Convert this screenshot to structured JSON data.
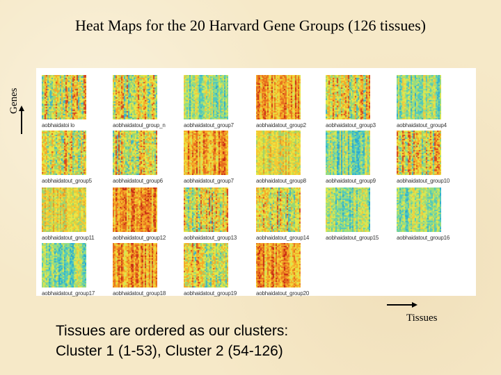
{
  "title": "Heat Maps for the 20 Harvard Gene Groups (126 tissues)",
  "y_axis_label": "Genes",
  "x_axis_label": "Tissues",
  "note_line1": "Tissues are ordered as our clusters:",
  "note_line2": "Cluster 1 (1-53), Cluster 2 (54-126)",
  "heatmaps": [
    {
      "caption": "aobhaidatoi lo",
      "tone": "mixed"
    },
    {
      "caption": "aobhaidatoul_group_n",
      "tone": "mixed"
    },
    {
      "caption": "aobhaidatout_group7",
      "tone": "cool"
    },
    {
      "caption": "aobhaidatout_group2",
      "tone": "warm"
    },
    {
      "caption": "aobhaidatout_group3",
      "tone": "mixed"
    },
    {
      "caption": "aobhaidatout_group4",
      "tone": "cool"
    },
    {
      "caption": "aobhaidatout_group5",
      "tone": "mixed"
    },
    {
      "caption": "aobhaidatout_group6",
      "tone": "mixed"
    },
    {
      "caption": "aobhaidatout_group7",
      "tone": "warm"
    },
    {
      "caption": "aobhaidatout_group8",
      "tone": "yellow"
    },
    {
      "caption": "aobhaidatout_group9",
      "tone": "cool"
    },
    {
      "caption": "aobhaidatout_group10",
      "tone": "mixed"
    },
    {
      "caption": "aobhaidatout_group11",
      "tone": "yellow"
    },
    {
      "caption": "aobhaidatout_group12",
      "tone": "warm"
    },
    {
      "caption": "aobhaidatout_group13",
      "tone": "mixed"
    },
    {
      "caption": "aobhaidatout_group14",
      "tone": "mixed"
    },
    {
      "caption": "aobhaidatout_group15",
      "tone": "cool"
    },
    {
      "caption": "aobhaidatout_group16",
      "tone": "cool"
    },
    {
      "caption": "aobhaidatout_group17",
      "tone": "cool"
    },
    {
      "caption": "aobhaidatout_group18",
      "tone": "warm"
    },
    {
      "caption": "aobhaidatout_group19",
      "tone": "mixed"
    },
    {
      "caption": "aobhaidatout_group20",
      "tone": "warm"
    }
  ]
}
